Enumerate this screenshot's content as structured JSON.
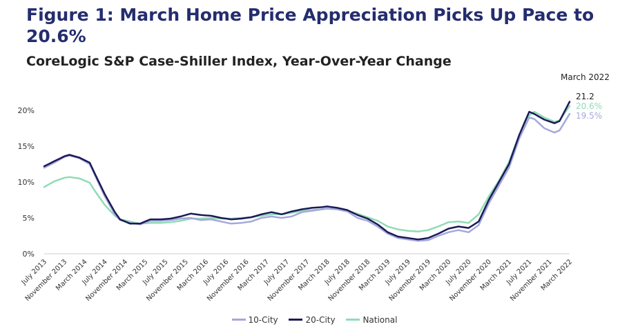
{
  "chart_data": {
    "type": "line",
    "title": "Figure 1: March Home Price Appreciation Picks Up Pace to 20.6%",
    "subtitle": "CoreLogic S&P Case-Shiller Index, Year-Over-Year Change",
    "annotation": "March 2022",
    "ylim": [
      0,
      20
    ],
    "yticks": [
      "0%",
      "5%",
      "10%",
      "15%",
      "20%"
    ],
    "ytick_values": [
      0,
      5,
      10,
      15,
      20
    ],
    "x_start": "July 2013",
    "x_end": "March 2022",
    "n_points": 105,
    "xtick_labels": [
      "July 2013",
      "November 2013",
      "March 2014",
      "July 2014",
      "November 2014",
      "March 2015",
      "July 2015",
      "November 2015",
      "March 2016",
      "July 2016",
      "November 2016",
      "March 2017",
      "July 2017",
      "November 2017",
      "March 2018",
      "July 2018",
      "November 2018",
      "March 2019",
      "July 2019",
      "November 2019",
      "March 2020",
      "July 2020",
      "November 2020",
      "March 2021",
      "July 2021",
      "November 2021",
      "March 2022"
    ],
    "xtick_index": [
      0,
      4,
      8,
      12,
      16,
      20,
      24,
      28,
      32,
      36,
      40,
      44,
      48,
      52,
      56,
      60,
      64,
      68,
      72,
      76,
      80,
      84,
      88,
      92,
      96,
      100,
      104
    ],
    "series": [
      {
        "name": "10-City",
        "color": "#a4a8dc",
        "end_label": "19.5%",
        "anchors": [
          [
            0,
            12.0
          ],
          [
            2,
            12.7
          ],
          [
            4,
            13.5
          ],
          [
            5,
            13.7
          ],
          [
            7,
            13.3
          ],
          [
            9,
            12.5
          ],
          [
            10,
            11.0
          ],
          [
            12,
            8.0
          ],
          [
            14,
            5.5
          ],
          [
            15,
            4.7
          ],
          [
            17,
            4.3
          ],
          [
            19,
            4.1
          ],
          [
            21,
            4.6
          ],
          [
            23,
            4.6
          ],
          [
            25,
            4.7
          ],
          [
            27,
            4.9
          ],
          [
            29,
            5.0
          ],
          [
            31,
            4.7
          ],
          [
            33,
            4.8
          ],
          [
            35,
            4.5
          ],
          [
            37,
            4.2
          ],
          [
            39,
            4.3
          ],
          [
            41,
            4.5
          ],
          [
            43,
            5.0
          ],
          [
            45,
            5.2
          ],
          [
            47,
            5.0
          ],
          [
            49,
            5.2
          ],
          [
            51,
            5.8
          ],
          [
            53,
            6.0
          ],
          [
            55,
            6.2
          ],
          [
            56,
            6.3
          ],
          [
            58,
            6.2
          ],
          [
            60,
            5.9
          ],
          [
            62,
            5.0
          ],
          [
            64,
            4.6
          ],
          [
            66,
            3.8
          ],
          [
            68,
            2.8
          ],
          [
            70,
            2.2
          ],
          [
            72,
            2.0
          ],
          [
            74,
            1.8
          ],
          [
            76,
            1.9
          ],
          [
            78,
            2.5
          ],
          [
            80,
            3.0
          ],
          [
            82,
            3.3
          ],
          [
            84,
            3.0
          ],
          [
            86,
            4.0
          ],
          [
            88,
            7.0
          ],
          [
            90,
            9.5
          ],
          [
            92,
            12.0
          ],
          [
            94,
            16.0
          ],
          [
            96,
            19.0
          ],
          [
            97,
            18.8
          ],
          [
            99,
            17.5
          ],
          [
            101,
            16.9
          ],
          [
            102,
            17.2
          ],
          [
            104,
            19.5
          ]
        ]
      },
      {
        "name": "20-City",
        "color": "#1a1a57",
        "end_label": "21.2",
        "anchors": [
          [
            0,
            12.2
          ],
          [
            2,
            12.9
          ],
          [
            4,
            13.6
          ],
          [
            5,
            13.8
          ],
          [
            7,
            13.4
          ],
          [
            9,
            12.7
          ],
          [
            10,
            11.2
          ],
          [
            12,
            8.3
          ],
          [
            14,
            5.8
          ],
          [
            15,
            4.8
          ],
          [
            17,
            4.2
          ],
          [
            19,
            4.2
          ],
          [
            21,
            4.8
          ],
          [
            23,
            4.8
          ],
          [
            25,
            4.9
          ],
          [
            27,
            5.2
          ],
          [
            29,
            5.6
          ],
          [
            31,
            5.4
          ],
          [
            33,
            5.3
          ],
          [
            35,
            5.0
          ],
          [
            37,
            4.8
          ],
          [
            39,
            4.9
          ],
          [
            41,
            5.1
          ],
          [
            43,
            5.5
          ],
          [
            45,
            5.8
          ],
          [
            47,
            5.5
          ],
          [
            49,
            5.9
          ],
          [
            51,
            6.2
          ],
          [
            53,
            6.4
          ],
          [
            55,
            6.5
          ],
          [
            56,
            6.6
          ],
          [
            58,
            6.4
          ],
          [
            60,
            6.1
          ],
          [
            62,
            5.4
          ],
          [
            64,
            4.9
          ],
          [
            66,
            4.1
          ],
          [
            68,
            3.0
          ],
          [
            70,
            2.4
          ],
          [
            72,
            2.2
          ],
          [
            74,
            2.0
          ],
          [
            76,
            2.2
          ],
          [
            78,
            2.8
          ],
          [
            80,
            3.5
          ],
          [
            82,
            3.8
          ],
          [
            84,
            3.6
          ],
          [
            86,
            4.5
          ],
          [
            88,
            7.5
          ],
          [
            90,
            10.0
          ],
          [
            92,
            12.5
          ],
          [
            94,
            16.5
          ],
          [
            96,
            19.8
          ],
          [
            97,
            19.5
          ],
          [
            99,
            18.7
          ],
          [
            101,
            18.2
          ],
          [
            102,
            18.5
          ],
          [
            104,
            21.2
          ]
        ]
      },
      {
        "name": "National",
        "color": "#8fdcb4",
        "end_label": "20.6%",
        "anchors": [
          [
            0,
            9.3
          ],
          [
            2,
            10.1
          ],
          [
            4,
            10.6
          ],
          [
            5,
            10.7
          ],
          [
            7,
            10.5
          ],
          [
            9,
            9.9
          ],
          [
            10,
            8.8
          ],
          [
            12,
            6.8
          ],
          [
            14,
            5.3
          ],
          [
            15,
            4.8
          ],
          [
            17,
            4.5
          ],
          [
            19,
            4.2
          ],
          [
            21,
            4.3
          ],
          [
            23,
            4.3
          ],
          [
            25,
            4.4
          ],
          [
            27,
            4.6
          ],
          [
            29,
            4.9
          ],
          [
            31,
            4.9
          ],
          [
            33,
            5.0
          ],
          [
            35,
            4.9
          ],
          [
            37,
            4.9
          ],
          [
            39,
            5.0
          ],
          [
            41,
            5.1
          ],
          [
            43,
            5.3
          ],
          [
            45,
            5.5
          ],
          [
            47,
            5.5
          ],
          [
            49,
            5.7
          ],
          [
            51,
            6.0
          ],
          [
            53,
            6.1
          ],
          [
            55,
            6.2
          ],
          [
            56,
            6.3
          ],
          [
            58,
            6.2
          ],
          [
            60,
            6.0
          ],
          [
            62,
            5.6
          ],
          [
            64,
            5.1
          ],
          [
            66,
            4.6
          ],
          [
            68,
            3.8
          ],
          [
            70,
            3.4
          ],
          [
            72,
            3.2
          ],
          [
            74,
            3.1
          ],
          [
            76,
            3.3
          ],
          [
            78,
            3.8
          ],
          [
            80,
            4.4
          ],
          [
            82,
            4.5
          ],
          [
            84,
            4.3
          ],
          [
            86,
            5.5
          ],
          [
            88,
            8.0
          ],
          [
            90,
            10.2
          ],
          [
            92,
            12.8
          ],
          [
            94,
            16.5
          ],
          [
            96,
            19.3
          ],
          [
            97,
            19.8
          ],
          [
            99,
            19.0
          ],
          [
            101,
            18.4
          ],
          [
            102,
            18.6
          ],
          [
            104,
            20.6
          ]
        ]
      }
    ]
  }
}
